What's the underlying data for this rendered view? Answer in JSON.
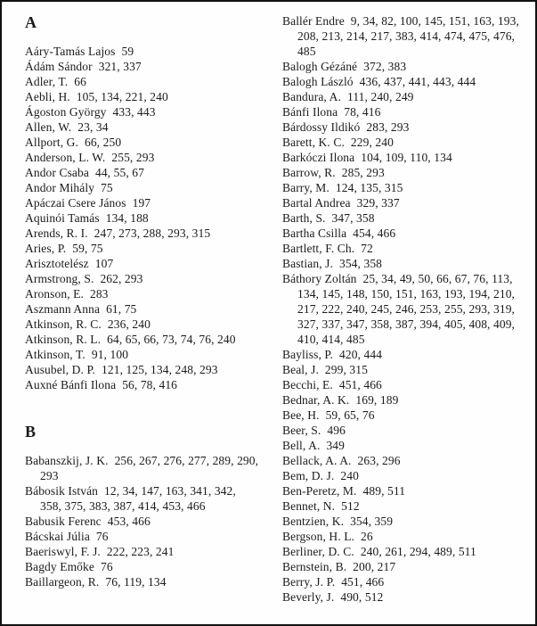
{
  "index": {
    "columns": [
      {
        "blocks": [
          {
            "type": "header",
            "text": "A"
          },
          {
            "type": "entry",
            "name": "Aáry-Tamás Lajos",
            "pages": "59"
          },
          {
            "type": "entry",
            "name": "Ádám Sándor",
            "pages": "321, 337"
          },
          {
            "type": "entry",
            "name": "Adler, T.",
            "pages": "66"
          },
          {
            "type": "entry",
            "name": "Aebli, H.",
            "pages": "105, 134, 221, 240"
          },
          {
            "type": "entry",
            "name": "Ágoston György",
            "pages": "433, 443"
          },
          {
            "type": "entry",
            "name": "Allen, W.",
            "pages": "23, 34"
          },
          {
            "type": "entry",
            "name": "Allport, G.",
            "pages": "66, 250"
          },
          {
            "type": "entry",
            "name": "Anderson, L. W.",
            "pages": "255, 293"
          },
          {
            "type": "entry",
            "name": "Andor Csaba",
            "pages": "44, 55, 67"
          },
          {
            "type": "entry",
            "name": "Andor Mihály",
            "pages": "75"
          },
          {
            "type": "entry",
            "name": "Apáczai Csere János",
            "pages": "197"
          },
          {
            "type": "entry",
            "name": "Aquinói Tamás",
            "pages": "134, 188"
          },
          {
            "type": "entry",
            "name": "Arends, R. I.",
            "pages": "247, 273, 288, 293, 315"
          },
          {
            "type": "entry",
            "name": "Aries, P.",
            "pages": "59, 75"
          },
          {
            "type": "entry",
            "name": "Arisztotelész",
            "pages": "107"
          },
          {
            "type": "entry",
            "name": "Armstrong, S.",
            "pages": "262, 293"
          },
          {
            "type": "entry",
            "name": "Aronson, E.",
            "pages": "283"
          },
          {
            "type": "entry",
            "name": "Aszmann Anna",
            "pages": "61, 75"
          },
          {
            "type": "entry",
            "name": "Atkinson, R. C.",
            "pages": "236, 240"
          },
          {
            "type": "entry",
            "name": "Atkinson, R. L.",
            "pages": "64, 65, 66, 73, 74, 76, 240"
          },
          {
            "type": "entry",
            "name": "Atkinson, T.",
            "pages": "91, 100"
          },
          {
            "type": "entry",
            "name": "Ausubel, D. P.",
            "pages": "121, 125, 134, 248, 293"
          },
          {
            "type": "entry",
            "name": "Auxné Bánfi Ilona",
            "pages": "56, 78, 416"
          },
          {
            "type": "header",
            "text": "B"
          },
          {
            "type": "entry",
            "name": "Babanszkij, J. K.",
            "pages": "256, 267, 276, 277, 289, 290, 293"
          },
          {
            "type": "entry",
            "name": "Bábosik István",
            "pages": "12, 34, 147, 163, 341, 342, 358, 375, 383, 387, 414, 453, 466"
          },
          {
            "type": "entry",
            "name": "Babusik Ferenc",
            "pages": "453, 466"
          },
          {
            "type": "entry",
            "name": "Bácskai Júlia",
            "pages": "76"
          },
          {
            "type": "entry",
            "name": "Baeriswyl, F. J.",
            "pages": "222, 223, 241"
          },
          {
            "type": "entry",
            "name": "Bagdy Emőke",
            "pages": "76"
          },
          {
            "type": "entry",
            "name": "Baillargeon, R.",
            "pages": "76, 119, 134"
          }
        ]
      },
      {
        "blocks": [
          {
            "type": "entry",
            "name": "Ballér Endre",
            "pages": "9, 34, 82, 100, 145, 151, 163, 193, 208, 213, 214, 217, 383, 414, 474, 475, 476, 485"
          },
          {
            "type": "entry",
            "name": "Balogh Gézáné",
            "pages": "372, 383"
          },
          {
            "type": "entry",
            "name": "Balogh László",
            "pages": "436, 437, 441, 443, 444"
          },
          {
            "type": "entry",
            "name": "Bandura, A.",
            "pages": "111, 240, 249"
          },
          {
            "type": "entry",
            "name": "Bánfi Ilona",
            "pages": "78, 416"
          },
          {
            "type": "entry",
            "name": "Bárdossy Ildikó",
            "pages": "283, 293"
          },
          {
            "type": "entry",
            "name": "Barett, K. C.",
            "pages": "229, 240"
          },
          {
            "type": "entry",
            "name": "Barkóczi Ilona",
            "pages": "104, 109, 110, 134"
          },
          {
            "type": "entry",
            "name": "Barrow, R.",
            "pages": "285, 293"
          },
          {
            "type": "entry",
            "name": "Barry, M.",
            "pages": "124, 135, 315"
          },
          {
            "type": "entry",
            "name": "Bartal Andrea",
            "pages": "329, 337"
          },
          {
            "type": "entry",
            "name": "Barth, S.",
            "pages": "347, 358"
          },
          {
            "type": "entry",
            "name": "Bartha Csilla",
            "pages": "454, 466"
          },
          {
            "type": "entry",
            "name": "Bartlett, F. Ch.",
            "pages": "72"
          },
          {
            "type": "entry",
            "name": "Bastian, J.",
            "pages": "354, 358"
          },
          {
            "type": "entry",
            "name": "Báthory Zoltán",
            "pages": "25, 34, 49, 50, 66, 67, 76, 113, 134, 145, 148, 150, 151, 163, 193, 194, 210, 217, 222, 240, 245, 246, 253, 255, 293, 319, 327, 337, 347, 358, 387, 394, 405, 408, 409, 410, 414, 485"
          },
          {
            "type": "entry",
            "name": "Bayliss, P.",
            "pages": "420, 444"
          },
          {
            "type": "entry",
            "name": "Beal, J.",
            "pages": "299, 315"
          },
          {
            "type": "entry",
            "name": "Becchi, E.",
            "pages": "451, 466"
          },
          {
            "type": "entry",
            "name": "Bednar, A. K.",
            "pages": "169, 189"
          },
          {
            "type": "entry",
            "name": "Bee, H.",
            "pages": "59, 65, 76"
          },
          {
            "type": "entry",
            "name": "Beer, S.",
            "pages": "496"
          },
          {
            "type": "entry",
            "name": "Bell, A.",
            "pages": "349"
          },
          {
            "type": "entry",
            "name": "Bellack, A. A.",
            "pages": "263, 296"
          },
          {
            "type": "entry",
            "name": "Bem, D. J.",
            "pages": "240"
          },
          {
            "type": "entry",
            "name": "Ben-Peretz, M.",
            "pages": "489, 511"
          },
          {
            "type": "entry",
            "name": "Bennet, N.",
            "pages": "512"
          },
          {
            "type": "entry",
            "name": "Bentzien, K.",
            "pages": "354, 359"
          },
          {
            "type": "entry",
            "name": "Bergson, H. L.",
            "pages": "26"
          },
          {
            "type": "entry",
            "name": "Berliner, D. C.",
            "pages": "240, 261, 294, 489, 511"
          },
          {
            "type": "entry",
            "name": "Bernstein, B.",
            "pages": "200, 217"
          },
          {
            "type": "entry",
            "name": "Berry, J. P.",
            "pages": "451, 466"
          },
          {
            "type": "entry",
            "name": "Beverly, J.",
            "pages": "490, 512"
          }
        ]
      }
    ]
  }
}
